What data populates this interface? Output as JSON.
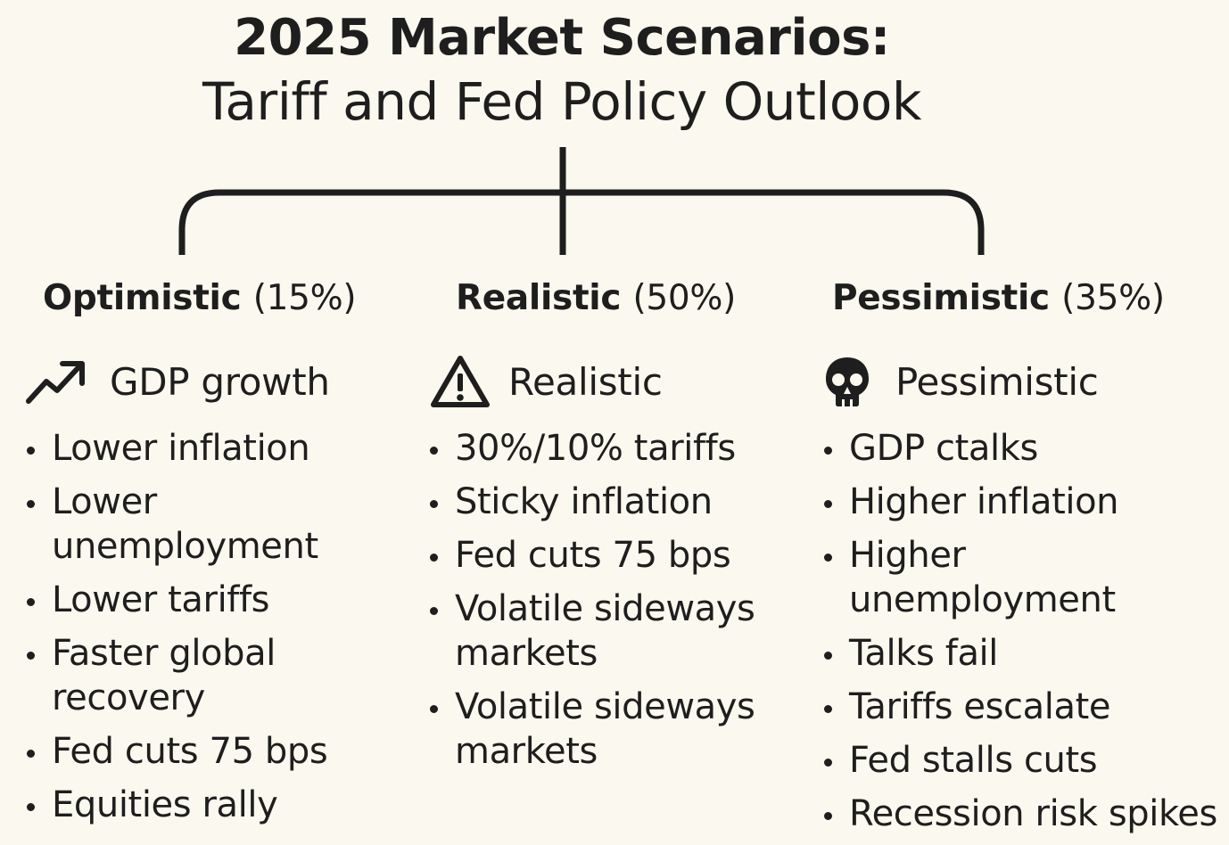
{
  "title": {
    "main": "2025 Market Scenarios:",
    "sub": "Tariff and Fed Policy Outlook"
  },
  "columns": [
    {
      "heading": "Optimistic",
      "percent": "(15%)",
      "icon": "trending-up-icon",
      "icon_label": "GDP growth",
      "bullets": [
        "Lower inflation",
        "Lower unemployment",
        "Lower tariffs",
        "Faster global recovery",
        "Fed cuts 75 bps",
        "Equities rally"
      ]
    },
    {
      "heading": "Realistic",
      "percent": "(50%)",
      "icon": "warning-triangle-icon",
      "icon_label": "Realistic",
      "bullets": [
        "30%/10% tariffs",
        "Sticky inflation",
        "Fed cuts 75 bps",
        "Volatile sideways markets",
        "Volatile sideways markets"
      ]
    },
    {
      "heading": "Pessimistic",
      "percent": "(35%)",
      "icon": "skull-icon",
      "icon_label": "Pessimistic",
      "bullets": [
        "GDP ctalks",
        "Higher inflation",
        "Higher unemployment",
        "Talks fail",
        "Tariffs escalate",
        "Fed stalls cuts",
        "Recession risk spikes"
      ]
    }
  ],
  "colors": {
    "background": "#fbf8ef",
    "ink": "#1e1e1e"
  }
}
